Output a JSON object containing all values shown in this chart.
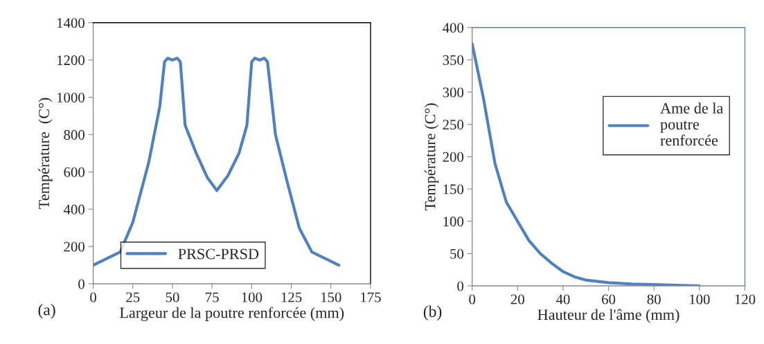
{
  "chart_data": [
    {
      "type": "line",
      "xlabel": "Largeur de la poutre renforcée (mm)",
      "ylabel": "Température  (C°)",
      "annotations": [
        "(a)"
      ],
      "series": [
        {
          "name": "PRSC-PRSD",
          "color": "#4f81bd",
          "x": [
            0,
            17,
            25,
            35,
            42,
            45,
            47,
            50,
            53,
            55,
            58,
            65,
            72,
            78,
            85,
            92,
            97,
            100,
            102,
            105,
            108,
            110,
            115,
            122,
            130,
            138,
            155
          ],
          "values": [
            100,
            170,
            330,
            650,
            950,
            1190,
            1210,
            1200,
            1210,
            1190,
            850,
            700,
            570,
            500,
            580,
            700,
            850,
            1190,
            1210,
            1200,
            1210,
            1190,
            800,
            560,
            300,
            170,
            100
          ]
        }
      ],
      "xlim": [
        0,
        175
      ],
      "xticks": [
        0,
        25,
        50,
        75,
        100,
        125,
        150,
        175
      ],
      "ylim": [
        0,
        1400
      ],
      "yticks": [
        0,
        200,
        400,
        600,
        800,
        1000,
        1200,
        1400
      ],
      "legend": "bottom",
      "grid": false
    },
    {
      "type": "line",
      "xlabel": "Hauteur de l'âme (mm)",
      "ylabel": "Température (C°)",
      "annotations": [
        "(b)"
      ],
      "series": [
        {
          "name": "Ame de la\npoutre\nrenforcée",
          "color": "#4f81bd",
          "x": [
            0,
            5,
            10,
            15,
            20,
            25,
            30,
            35,
            40,
            45,
            50,
            60,
            70,
            80,
            100
          ],
          "values": [
            375,
            290,
            190,
            130,
            100,
            70,
            50,
            35,
            22,
            14,
            9,
            5,
            3,
            2,
            0
          ]
        }
      ],
      "xlim": [
        0,
        120
      ],
      "xticks": [
        0,
        20,
        40,
        60,
        80,
        100,
        120
      ],
      "ylim": [
        0,
        400
      ],
      "yticks": [
        0,
        50,
        100,
        150,
        200,
        250,
        300,
        350,
        400
      ],
      "legend": "right",
      "grid": false
    }
  ]
}
